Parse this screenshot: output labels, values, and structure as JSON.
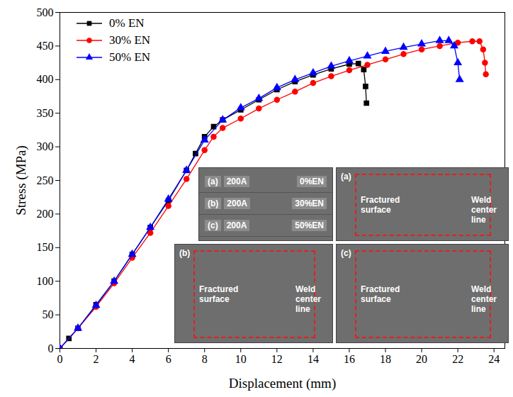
{
  "chart_data": {
    "type": "line",
    "x_label": "Displacement (mm)",
    "y_label": "Stress (MPa)",
    "xlim": [
      0,
      24.6
    ],
    "ylim": [
      0,
      500
    ],
    "xticks": [
      0,
      2,
      4,
      6,
      8,
      10,
      12,
      14,
      16,
      18,
      20,
      22,
      24
    ],
    "yticks": [
      0,
      50,
      100,
      150,
      200,
      250,
      300,
      350,
      400,
      450,
      500
    ],
    "grid": false,
    "legend": "upper left",
    "series": [
      {
        "name": "0% EN",
        "color": "#000000",
        "marker": "square",
        "x": [
          0,
          0.5,
          1,
          2,
          3,
          4,
          5,
          6,
          7,
          7.5,
          8,
          8.5,
          9,
          10,
          11,
          12,
          13,
          14,
          15,
          16,
          16.5,
          16.8,
          16.9,
          16.95
        ],
        "values": [
          0,
          15,
          30,
          65,
          100,
          140,
          180,
          220,
          265,
          290,
          315,
          330,
          340,
          355,
          370,
          385,
          397,
          407,
          416,
          423,
          424,
          415,
          390,
          365
        ]
      },
      {
        "name": "30% EN",
        "color": "#ff0000",
        "marker": "circle",
        "x": [
          0,
          1,
          2,
          3,
          4,
          5,
          6,
          7,
          8,
          8.5,
          9,
          10,
          11,
          12,
          13,
          14,
          15,
          16,
          17,
          18,
          19,
          20,
          21,
          22,
          22.8,
          23.2,
          23.4,
          23.5,
          23.55
        ],
        "values": [
          0,
          30,
          62,
          97,
          135,
          172,
          212,
          252,
          295,
          315,
          328,
          342,
          357,
          370,
          382,
          395,
          405,
          414,
          422,
          430,
          438,
          445,
          450,
          455,
          457,
          457,
          445,
          425,
          408
        ]
      },
      {
        "name": "50% EN",
        "color": "#0000ff",
        "marker": "triangle",
        "x": [
          0,
          1,
          2,
          3,
          4,
          5,
          6,
          7,
          8,
          9,
          10,
          11,
          12,
          13,
          14,
          15,
          16,
          17,
          18,
          19,
          20,
          21,
          21.5,
          21.8,
          22,
          22.1
        ],
        "values": [
          0,
          30,
          64,
          100,
          140,
          180,
          222,
          265,
          310,
          340,
          358,
          372,
          388,
          400,
          410,
          420,
          428,
          435,
          442,
          448,
          453,
          458,
          458,
          450,
          425,
          400
        ]
      }
    ],
    "annotations": [
      {
        "rows": [
          [
            "(a)",
            "200A",
            "0%EN"
          ],
          [
            "(b)",
            "200A",
            "30%EN"
          ],
          [
            "(c)",
            "200A",
            "50%EN"
          ]
        ]
      },
      {
        "label": "(a)",
        "texts": [
          "Fractured surface",
          "Weld center line"
        ]
      },
      {
        "label": "(b)",
        "texts": [
          "Fractured surface",
          "Weld center line"
        ]
      },
      {
        "label": "(c)",
        "texts": [
          "Fractured surface",
          "Weld center line"
        ]
      }
    ]
  }
}
